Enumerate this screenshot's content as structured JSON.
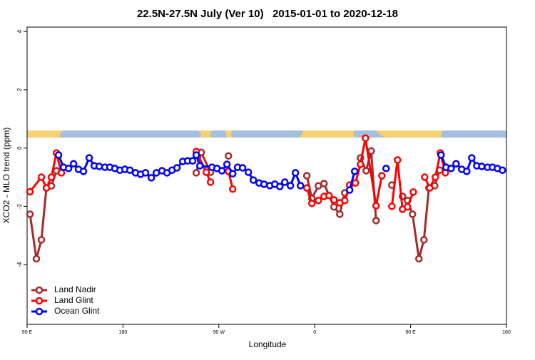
{
  "chart_data": {
    "type": "line",
    "title": "22.5N-27.5N July (Ver 10)   2015-01-01 to 2020-12-18",
    "x_label": "Longitude",
    "y_label": "XCO2 - MLO trend (ppm)",
    "xlim": [
      90,
      540
    ],
    "ylim": [
      -6.05,
      4.15
    ],
    "xticks": [
      {
        "value": 90,
        "label": "90 E"
      },
      180,
      {
        "value": 270,
        "label": "90 W"
      },
      {
        "value": 360,
        "label": "0"
      },
      {
        "value": 450,
        "label": "90 E"
      },
      {
        "value": 540,
        "label": "180"
      }
    ],
    "yticks": [
      4,
      2,
      0,
      -2,
      -4
    ],
    "legend": "bottom-left",
    "series": [
      {
        "name": "Land Nadir",
        "color": "#a52a2a",
        "x": [
          92.7,
          98.7,
          103.4,
          108.1,
          112.8,
          117.5,
          null,
          248.8,
          253.5,
          262.2,
          null,
          279,
          null,
          352.6,
          357.3,
          363.4,
          368.7,
          378.1,
          383.5,
          388.2,
          null,
          402.9,
          408.3,
          413,
          417.6,
          null,
          432.4,
          null,
          442.4,
          447.1,
          451.8,
          457.8,
          462.5,
          467.2,
          472.6,
          477.3
        ],
        "values": [
          -2.27,
          -3.8,
          -3.15,
          -1.37,
          -1.3,
          -0.78,
          null,
          -0.85,
          -0.15,
          -0.83,
          null,
          -0.27,
          null,
          -0.95,
          -1.73,
          -1.3,
          -1.22,
          -2.02,
          -2.27,
          -1.54,
          null,
          -0.34,
          -0.78,
          -0.1,
          -2.49,
          null,
          -1.27,
          null,
          -1.66,
          -1.8,
          -2.27,
          -3.8,
          -3.15,
          -1.37,
          -1.29,
          -0.76
        ]
      },
      {
        "name": "Land Glint",
        "color": "#ff0000",
        "x": [
          92.7,
          103.4,
          108.1,
          112.8,
          117.5,
          122.2,
          null,
          248.8,
          258.2,
          262.2,
          null,
          279,
          283,
          null,
          352.6,
          357.3,
          363.4,
          368.7,
          373.4,
          378.1,
          383.5,
          388.2,
          392.8,
          398.2,
          402.9,
          407.6,
          417.6,
          423,
          null,
          432.4,
          437.7,
          442.4,
          447.1,
          452.5,
          null,
          463.2,
          467.9,
          473.2,
          477.9,
          482.6
        ],
        "values": [
          -1.5,
          -1.0,
          -1.37,
          -1.0,
          -0.17,
          -0.85,
          null,
          -0.12,
          -0.83,
          -1.17,
          null,
          -0.8,
          -1.41,
          null,
          -1.37,
          -1.9,
          -1.8,
          -1.66,
          -1.63,
          -1.78,
          -1.88,
          -1.8,
          -1.27,
          -1.2,
          -0.56,
          0.34,
          -1.98,
          -0.95,
          null,
          -2.0,
          -0.41,
          -2.1,
          -2.02,
          -1.51,
          null,
          -1.0,
          -1.37,
          -1.0,
          -0.17,
          -0.85
        ]
      },
      {
        "name": "Ocean Glint",
        "color": "#0000ff",
        "x": [
          119.5,
          124.2,
          128.9,
          133.6,
          138.2,
          142.9,
          148.3,
          153,
          157.7,
          163,
          167.7,
          172.4,
          177.1,
          181.8,
          186.5,
          191.8,
          196.5,
          201.2,
          206.6,
          211.3,
          216.6,
          221.3,
          226,
          230.7,
          236.1,
          240.8,
          245.4,
          248.8,
          252.2,
          263.5,
          268.2,
          272.9,
          277.6,
          283,
          287.6,
          292.3,
          297.7,
          302.4,
          307.8,
          312.4,
          317.8,
          322.5,
          327.2,
          331.9,
          337.2,
          341.9,
          346.6,
          null,
          392.8,
          397.5,
          null,
          427,
          null,
          478.6,
          483.3,
          488,
          492.7,
          498,
          502.7,
          507.4,
          512.1,
          516.8,
          522.2,
          526.8,
          531.5,
          536.2
        ],
        "values": [
          -0.24,
          -0.66,
          -0.7,
          -0.54,
          -0.73,
          -0.8,
          -0.34,
          -0.61,
          -0.63,
          -0.66,
          -0.66,
          -0.7,
          -0.76,
          -0.73,
          -0.76,
          -0.85,
          -0.9,
          -0.85,
          -1.02,
          -0.85,
          -0.78,
          -0.85,
          -0.76,
          -0.68,
          -0.46,
          -0.44,
          -0.44,
          -0.24,
          -0.61,
          -0.66,
          -0.7,
          -0.78,
          -0.56,
          -0.88,
          -0.66,
          -0.68,
          -0.83,
          -1.1,
          -1.2,
          -1.24,
          -1.29,
          -1.24,
          -1.32,
          -1.17,
          -1.29,
          -0.85,
          -1.29,
          null,
          -1.44,
          -0.8,
          null,
          -0.7,
          null,
          -0.24,
          -0.66,
          -0.7,
          -0.54,
          -0.73,
          -0.8,
          -0.34,
          -0.61,
          -0.63,
          -0.66,
          -0.66,
          -0.7,
          -0.76
        ]
      }
    ]
  }
}
